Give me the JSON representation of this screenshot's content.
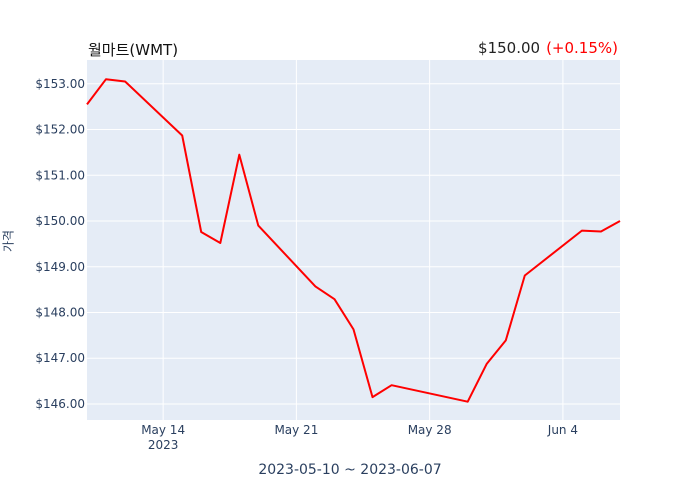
{
  "header": {
    "title": "월마트(WMT)",
    "price": "$150.00",
    "change": "(+0.15%)"
  },
  "chart_data": {
    "type": "line",
    "title": "월마트(WMT)",
    "xlabel": "2023-05-10 ~ 2023-06-07",
    "ylabel": "가격",
    "x": [
      "2023-05-10",
      "2023-05-11",
      "2023-05-12",
      "2023-05-15",
      "2023-05-16",
      "2023-05-17",
      "2023-05-18",
      "2023-05-19",
      "2023-05-22",
      "2023-05-23",
      "2023-05-24",
      "2023-05-25",
      "2023-05-26",
      "2023-05-30",
      "2023-05-31",
      "2023-06-01",
      "2023-06-02",
      "2023-06-05",
      "2023-06-06",
      "2023-06-07"
    ],
    "series": [
      {
        "values": [
          152.55,
          153.1,
          153.05,
          151.87,
          149.76,
          149.52,
          151.45,
          149.9,
          148.57,
          148.29,
          147.63,
          146.15,
          146.41,
          146.05,
          146.88,
          147.39,
          148.81,
          149.79,
          149.77,
          150.0
        ]
      }
    ],
    "ylim": [
      145.65,
      153.52
    ],
    "yticks": [
      146,
      147,
      148,
      149,
      150,
      151,
      152,
      153
    ],
    "ytick_labels": [
      "$146.00",
      "$147.00",
      "$148.00",
      "$149.00",
      "$150.00",
      "$151.00",
      "$152.00",
      "$153.00"
    ],
    "xticks": [
      "2023-05-14",
      "2023-05-21",
      "2023-05-28",
      "2023-06-04"
    ],
    "xtick_labels": [
      "May 14",
      "May 21",
      "May 28",
      "Jun 4"
    ],
    "xtick_sublabel": "2023",
    "grid": true,
    "colors": {
      "line": "#ff0000",
      "plot_bg": "#e5ecf6",
      "grid": "#ffffff",
      "tick_text": "#2a3f5f"
    }
  }
}
